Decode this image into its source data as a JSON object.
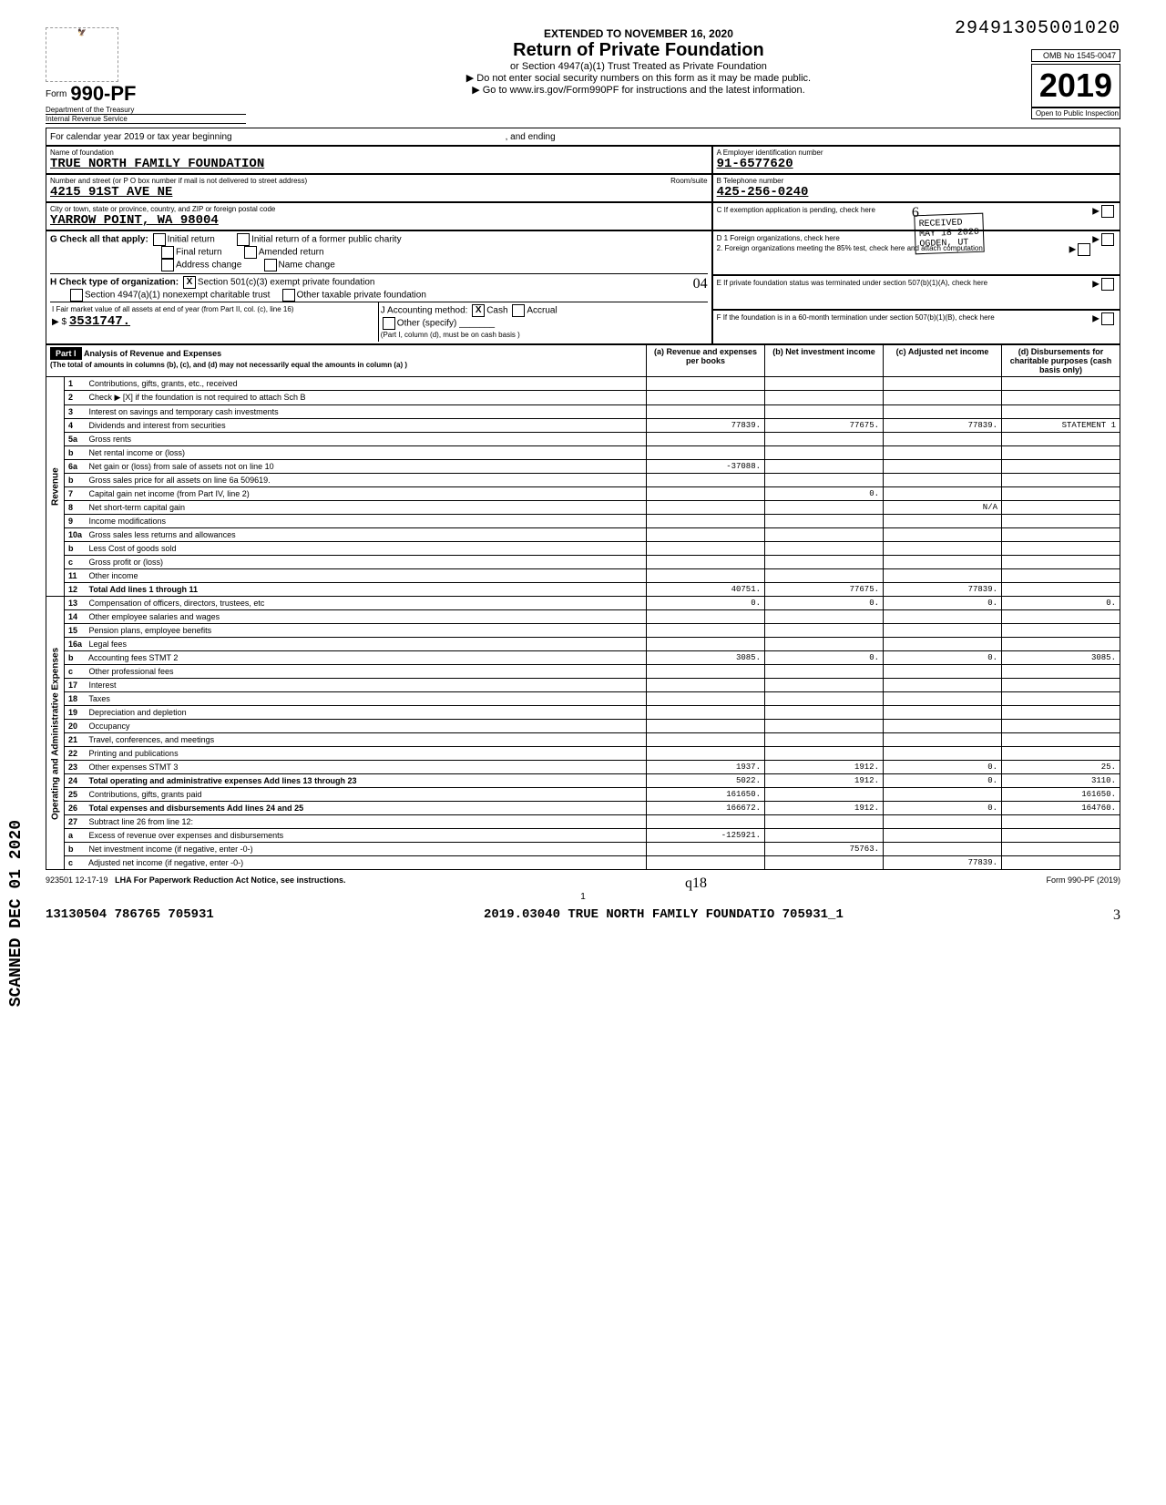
{
  "dln": "29491305001020",
  "extended_text": "EXTENDED TO NOVEMBER 16, 2020",
  "form_number": "990-PF",
  "form_label": "Form",
  "dept_line1": "Department of the Treasury",
  "dept_line2": "Internal Revenue Service",
  "title": "Return of Private Foundation",
  "subtitle1": "or Section 4947(a)(1) Trust Treated as Private Foundation",
  "subtitle2": "▶ Do not enter social security numbers on this form as it may be made public.",
  "subtitle3": "▶ Go to www.irs.gov/Form990PF for instructions and the latest information.",
  "omb": "OMB No 1545-0047",
  "year": "2019",
  "open_inspection": "Open to Public Inspection",
  "calendar_line": "For calendar year 2019 or tax year beginning",
  "and_ending": ", and ending",
  "name_label": "Name of foundation",
  "name": "TRUE NORTH FAMILY FOUNDATION",
  "addr_label": "Number and street (or P O  box number if mail is not delivered to street address)",
  "room_label": "Room/suite",
  "addr": "4215 91ST AVE NE",
  "city_label": "City or town, state or province, country, and ZIP or foreign postal code",
  "city": "YARROW POINT, WA  98004",
  "ein_label": "A Employer identification number",
  "ein": "91-6577620",
  "phone_label": "B Telephone number",
  "phone": "425-256-0240",
  "c_label": "C If exemption application is pending, check here",
  "d1_label": "D 1 Foreign organizations, check here",
  "d2_label": "2. Foreign organizations meeting the 85% test, check here and attach computation",
  "e_label": "E If private foundation status was terminated under section 507(b)(1)(A), check here",
  "f_label": "F If the foundation is in a 60-month termination under section 507(b)(1)(B), check here",
  "g_label": "G Check all that apply:",
  "g_opts": [
    "Initial return",
    "Final return",
    "Address change",
    "Initial return of a former public charity",
    "Amended return",
    "Name change"
  ],
  "h_label": "H Check type of organization:",
  "h_opts": [
    "Section 501(c)(3) exempt private foundation",
    "Section 4947(a)(1) nonexempt charitable trust",
    "Other taxable private foundation"
  ],
  "h_checked": "X",
  "i_label": "I Fair market value of all assets at end of year (from Part II, col. (c), line 16)",
  "i_value": "3531747.",
  "j_label": "J Accounting method:",
  "j_cash": "Cash",
  "j_cash_checked": "X",
  "j_accrual": "Accrual",
  "j_other": "Other (specify)",
  "j_note": "(Part I, column (d), must be on cash basis )",
  "hand_04": "04",
  "stamp_received": "RECEIVED",
  "stamp_date": "MAY 18 2020",
  "stamp_ogden": "OGDEN, UT",
  "part1": {
    "header": "Part I",
    "title": "Analysis of Revenue and Expenses",
    "subtitle": "(The total of amounts in columns (b), (c), and (d) may not necessarily equal the amounts in column (a) )",
    "col_a": "(a) Revenue and expenses per books",
    "col_b": "(b) Net investment income",
    "col_c": "(c) Adjusted net income",
    "col_d": "(d) Disbursements for charitable purposes (cash basis only)",
    "rev_label": "Revenue",
    "opex_label": "Operating and Administrative Expenses",
    "rows": [
      {
        "n": "1",
        "t": "Contributions, gifts, grants, etc., received",
        "a": "",
        "b": "",
        "c": "",
        "d": ""
      },
      {
        "n": "2",
        "t": "Check ▶ [X] if the foundation is not required to attach Sch B",
        "a": "",
        "b": "",
        "c": "",
        "d": ""
      },
      {
        "n": "3",
        "t": "Interest on savings and temporary cash investments",
        "a": "",
        "b": "",
        "c": "",
        "d": ""
      },
      {
        "n": "4",
        "t": "Dividends and interest from securities",
        "a": "77839.",
        "b": "77675.",
        "c": "77839.",
        "d": "STATEMENT 1"
      },
      {
        "n": "5a",
        "t": "Gross rents",
        "a": "",
        "b": "",
        "c": "",
        "d": ""
      },
      {
        "n": "b",
        "t": "Net rental income or (loss)",
        "a": "",
        "b": "",
        "c": "",
        "d": ""
      },
      {
        "n": "6a",
        "t": "Net gain or (loss) from sale of assets not on line 10",
        "a": "-37088.",
        "b": "",
        "c": "",
        "d": ""
      },
      {
        "n": "b",
        "t": "Gross sales price for all assets on line 6a       509619.",
        "a": "",
        "b": "",
        "c": "",
        "d": ""
      },
      {
        "n": "7",
        "t": "Capital gain net income (from Part IV, line 2)",
        "a": "",
        "b": "0.",
        "c": "",
        "d": ""
      },
      {
        "n": "8",
        "t": "Net short-term capital gain",
        "a": "",
        "b": "",
        "c": "N/A",
        "d": ""
      },
      {
        "n": "9",
        "t": "Income modifications",
        "a": "",
        "b": "",
        "c": "",
        "d": ""
      },
      {
        "n": "10a",
        "t": "Gross sales less returns and allowances",
        "a": "",
        "b": "",
        "c": "",
        "d": ""
      },
      {
        "n": "b",
        "t": "Less Cost of goods sold",
        "a": "",
        "b": "",
        "c": "",
        "d": ""
      },
      {
        "n": "c",
        "t": "Gross profit or (loss)",
        "a": "",
        "b": "",
        "c": "",
        "d": ""
      },
      {
        "n": "11",
        "t": "Other income",
        "a": "",
        "b": "",
        "c": "",
        "d": ""
      },
      {
        "n": "12",
        "t": "Total Add lines 1 through 11",
        "a": "40751.",
        "b": "77675.",
        "c": "77839.",
        "d": ""
      },
      {
        "n": "13",
        "t": "Compensation of officers, directors, trustees, etc",
        "a": "0.",
        "b": "0.",
        "c": "0.",
        "d": "0."
      },
      {
        "n": "14",
        "t": "Other employee salaries and wages",
        "a": "",
        "b": "",
        "c": "",
        "d": ""
      },
      {
        "n": "15",
        "t": "Pension plans, employee benefits",
        "a": "",
        "b": "",
        "c": "",
        "d": ""
      },
      {
        "n": "16a",
        "t": "Legal fees",
        "a": "",
        "b": "",
        "c": "",
        "d": ""
      },
      {
        "n": "b",
        "t": "Accounting fees              STMT 2",
        "a": "3085.",
        "b": "0.",
        "c": "0.",
        "d": "3085."
      },
      {
        "n": "c",
        "t": "Other professional fees",
        "a": "",
        "b": "",
        "c": "",
        "d": ""
      },
      {
        "n": "17",
        "t": "Interest",
        "a": "",
        "b": "",
        "c": "",
        "d": ""
      },
      {
        "n": "18",
        "t": "Taxes",
        "a": "",
        "b": "",
        "c": "",
        "d": ""
      },
      {
        "n": "19",
        "t": "Depreciation and depletion",
        "a": "",
        "b": "",
        "c": "",
        "d": ""
      },
      {
        "n": "20",
        "t": "Occupancy",
        "a": "",
        "b": "",
        "c": "",
        "d": ""
      },
      {
        "n": "21",
        "t": "Travel, conferences, and meetings",
        "a": "",
        "b": "",
        "c": "",
        "d": ""
      },
      {
        "n": "22",
        "t": "Printing and publications",
        "a": "",
        "b": "",
        "c": "",
        "d": ""
      },
      {
        "n": "23",
        "t": "Other expenses              STMT 3",
        "a": "1937.",
        "b": "1912.",
        "c": "0.",
        "d": "25."
      },
      {
        "n": "24",
        "t": "Total operating and administrative expenses Add lines 13 through 23",
        "a": "5022.",
        "b": "1912.",
        "c": "0.",
        "d": "3110."
      },
      {
        "n": "25",
        "t": "Contributions, gifts, grants paid",
        "a": "161650.",
        "b": "",
        "c": "",
        "d": "161650."
      },
      {
        "n": "26",
        "t": "Total expenses and disbursements Add lines 24 and 25",
        "a": "166672.",
        "b": "1912.",
        "c": "0.",
        "d": "164760."
      },
      {
        "n": "27",
        "t": "Subtract line 26 from line 12:",
        "a": "",
        "b": "",
        "c": "",
        "d": ""
      },
      {
        "n": "a",
        "t": "Excess of revenue over expenses and disbursements",
        "a": "-125921.",
        "b": "",
        "c": "",
        "d": ""
      },
      {
        "n": "b",
        "t": "Net investment income (if negative, enter -0-)",
        "a": "",
        "b": "75763.",
        "c": "",
        "d": ""
      },
      {
        "n": "c",
        "t": "Adjusted net income (if negative, enter -0-)",
        "a": "",
        "b": "",
        "c": "77839.",
        "d": ""
      }
    ]
  },
  "footer_code": "923501 12-17-19",
  "footer_lha": "LHA  For Paperwork Reduction Act Notice, see instructions.",
  "footer_form": "Form 990-PF (2019)",
  "page_num": "1",
  "footer_batch": "13130504 786765 705931",
  "footer_file": "2019.03040 TRUE NORTH FAMILY FOUNDATIO 705931_1",
  "side_scan": "SCANNED DEC 01 2020",
  "hand_q18": "q18",
  "hand_03": "03",
  "hand_04b": "04",
  "hand_6": "6",
  "hand_3": "3"
}
